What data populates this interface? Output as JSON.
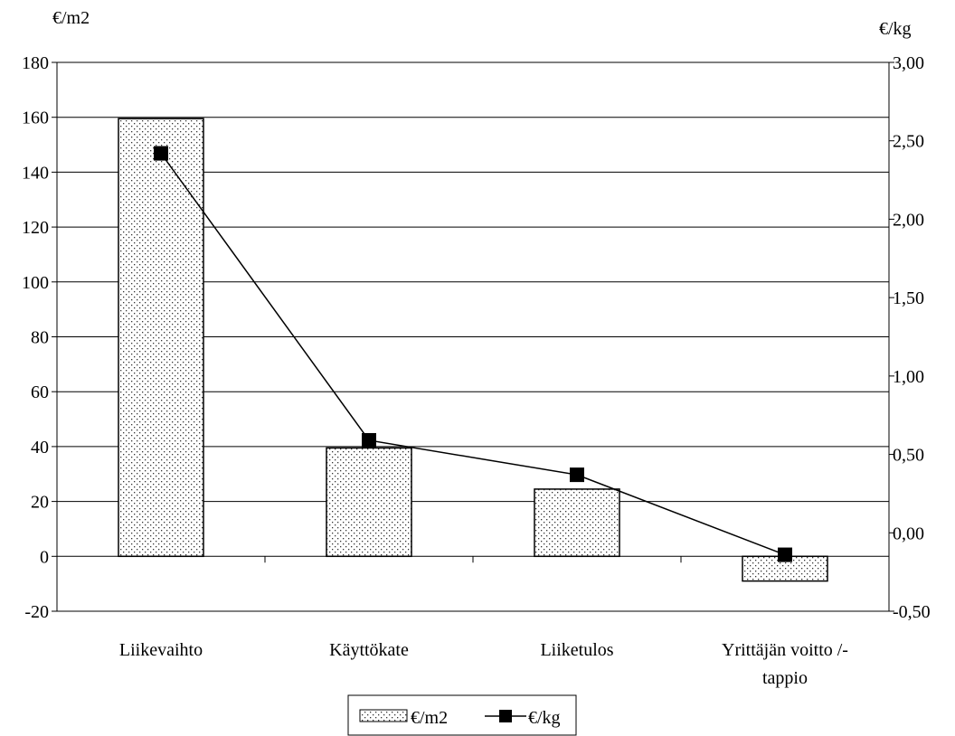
{
  "chart_data": {
    "type": "bar",
    "categories": [
      "Liikevaihto",
      "Käyttökate",
      "Liiketulos",
      "Yrittäjän voitto /-tappio"
    ],
    "category_lines": [
      [
        "Liikevaihto"
      ],
      [
        "Käyttökate"
      ],
      [
        "Liiketulos"
      ],
      [
        "Yrittäjän voitto /-",
        "tappio"
      ]
    ],
    "series": [
      {
        "name": "€/m2",
        "type": "bar",
        "axis": "left",
        "values": [
          159.5,
          39.5,
          24.5,
          -9
        ]
      },
      {
        "name": "€/kg",
        "type": "line",
        "axis": "right",
        "values": [
          2.42,
          0.59,
          0.37,
          -0.14
        ]
      }
    ],
    "left_axis": {
      "label": "€/m2",
      "ylim": [
        -20,
        180
      ],
      "ticks": [
        "-20",
        "0",
        "20",
        "40",
        "60",
        "80",
        "100",
        "120",
        "140",
        "160",
        "180"
      ]
    },
    "right_axis": {
      "label": "€/kg",
      "ylim": [
        -0.5,
        3.0
      ],
      "ticks": [
        "-0,50",
        "0,00",
        "0,50",
        "1,00",
        "1,50",
        "2,00",
        "2,50",
        "3,00"
      ]
    },
    "grid": true,
    "legend_position": "bottom"
  }
}
